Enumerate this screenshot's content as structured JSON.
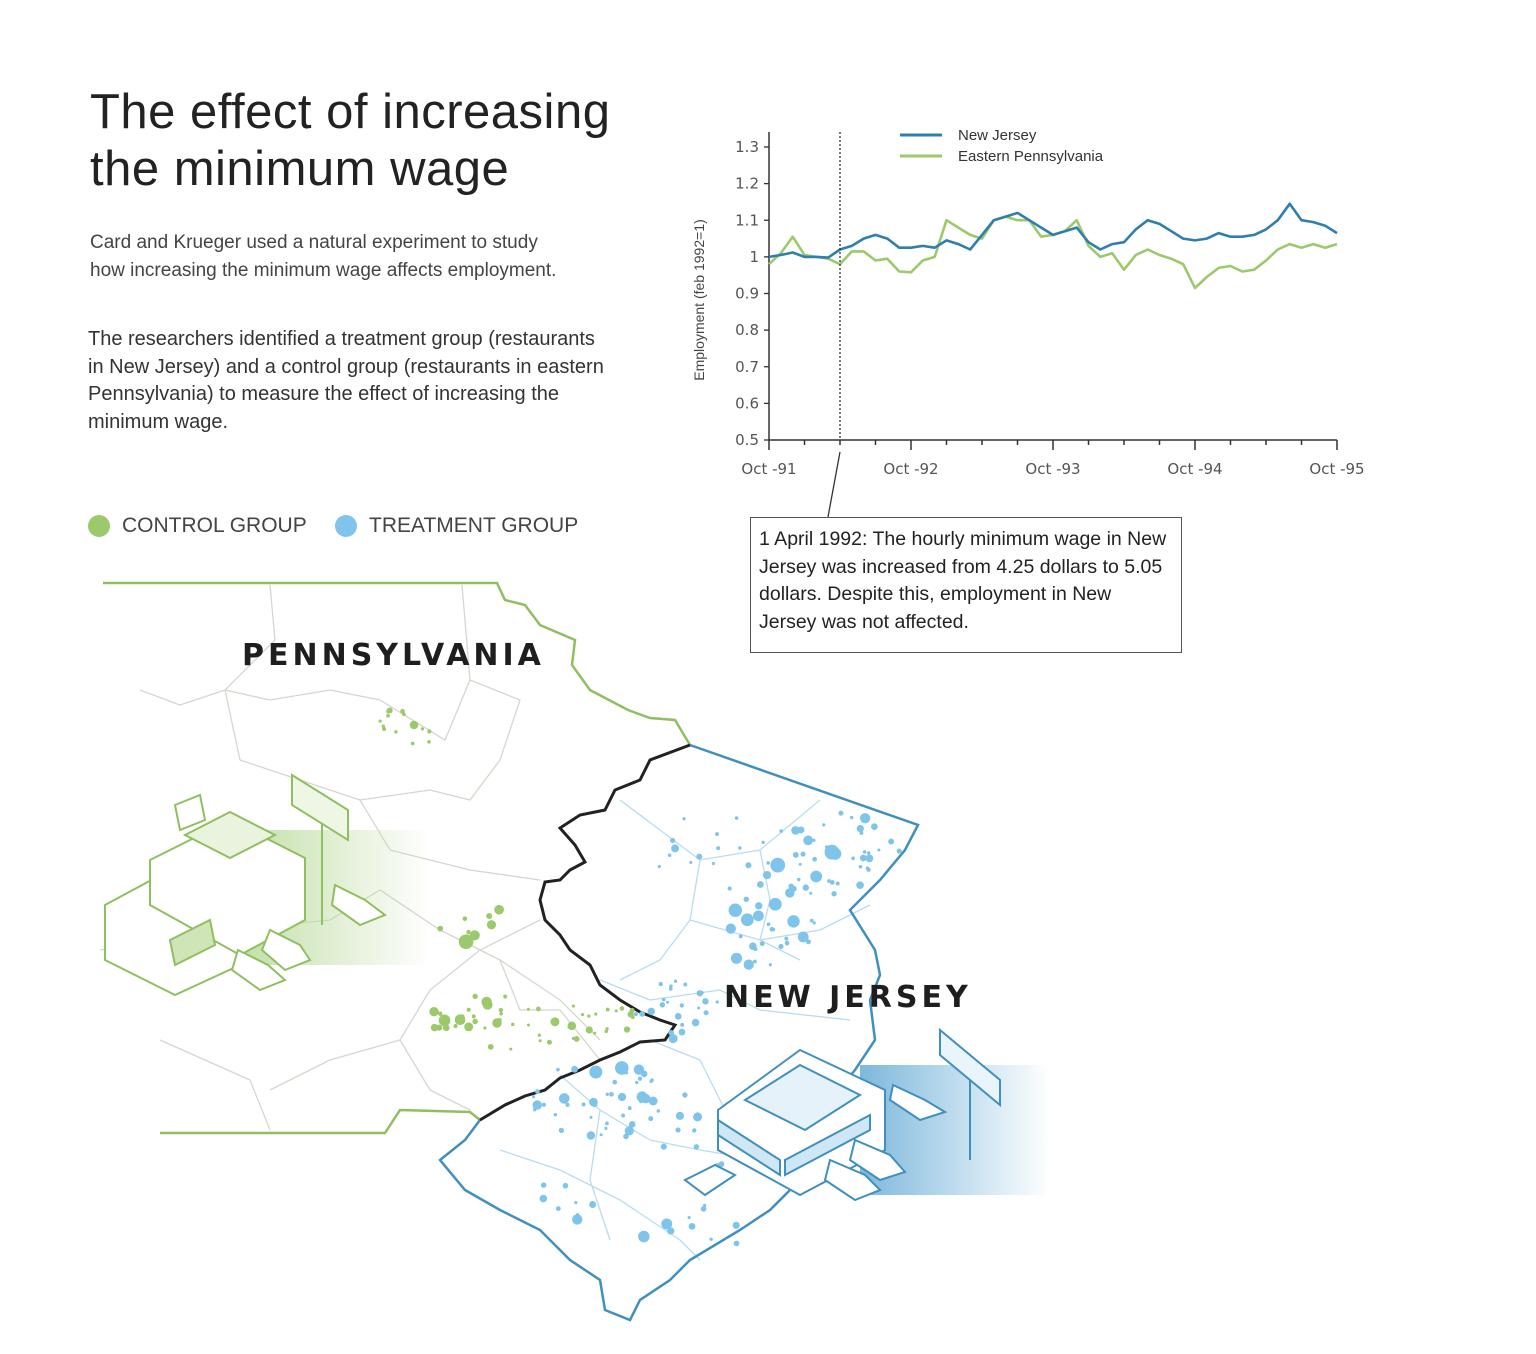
{
  "title": "The effect of increasing the minimum wage",
  "intro": "Card and Krueger used a natural experiment to study how increasing the minimum wage affects employment.",
  "description": "The researchers identified a treatment group (restaurants in New Jersey) and a control group (restaurants in eastern Pennsylvania) to measure the effect of increasing the minimum wage.",
  "legend": {
    "control": {
      "label": "CONTROL GROUP",
      "color": "#9cc96b"
    },
    "treatment": {
      "label": "TREATMENT GROUP",
      "color": "#7fc4ea"
    }
  },
  "map": {
    "pennsylvania_label": "PENNSYLVANIA",
    "new_jersey_label": "NEW JERSEY",
    "pa_color": "#8fbf5f",
    "nj_color": "#3f8fbf",
    "border_color": "#222222"
  },
  "callout": "1 April 1992: The hourly minimum wage in New Jersey was increased from 4.25 dollars to 5.05 dollars. Despite this, employment in New Jersey was not affected.",
  "chart_data": {
    "type": "line",
    "title": "",
    "xlabel": "",
    "ylabel": "Employment (feb 1992=1)",
    "ylim": [
      0.5,
      1.3
    ],
    "yticks": [
      "0.5",
      "0.6",
      "0.7",
      "0.8",
      "0.9",
      "1",
      "1.1",
      "1.2",
      "1.3"
    ],
    "xticks": [
      "Oct -91",
      "Oct -92",
      "Oct -93",
      "Oct -94",
      "Oct -95"
    ],
    "x_start": "1991-10",
    "x_end": "1995-10",
    "x_frequency": "monthly",
    "grid": false,
    "legend_position": "top",
    "event_marker": {
      "date": "1992-04",
      "style": "dotted vertical line"
    },
    "series": [
      {
        "name": "New Jersey",
        "color": "#2f7fae",
        "values": [
          1.0,
          1.005,
          1.012,
          1.0,
          1.0,
          0.998,
          1.02,
          1.03,
          1.05,
          1.06,
          1.05,
          1.025,
          1.025,
          1.03,
          1.025,
          1.045,
          1.035,
          1.02,
          1.06,
          1.1,
          1.11,
          1.12,
          1.1,
          1.08,
          1.06,
          1.07,
          1.08,
          1.04,
          1.02,
          1.035,
          1.04,
          1.075,
          1.1,
          1.09,
          1.07,
          1.05,
          1.045,
          1.05,
          1.065,
          1.055,
          1.055,
          1.06,
          1.075,
          1.1,
          1.145,
          1.1,
          1.095,
          1.085,
          1.065
        ]
      },
      {
        "name": "Eastern Pennsylvania",
        "color": "#9cc96b",
        "values": [
          0.98,
          1.01,
          1.055,
          1.005,
          1.0,
          0.995,
          0.98,
          1.015,
          1.015,
          0.99,
          0.995,
          0.96,
          0.958,
          0.99,
          1.0,
          1.1,
          1.08,
          1.06,
          1.05,
          1.1,
          1.11,
          1.1,
          1.1,
          1.055,
          1.06,
          1.07,
          1.1,
          1.03,
          1.0,
          1.01,
          0.965,
          1.005,
          1.02,
          1.005,
          0.995,
          0.98,
          0.915,
          0.945,
          0.97,
          0.975,
          0.96,
          0.965,
          0.99,
          1.02,
          1.035,
          1.025,
          1.035,
          1.025,
          1.035
        ]
      }
    ]
  }
}
